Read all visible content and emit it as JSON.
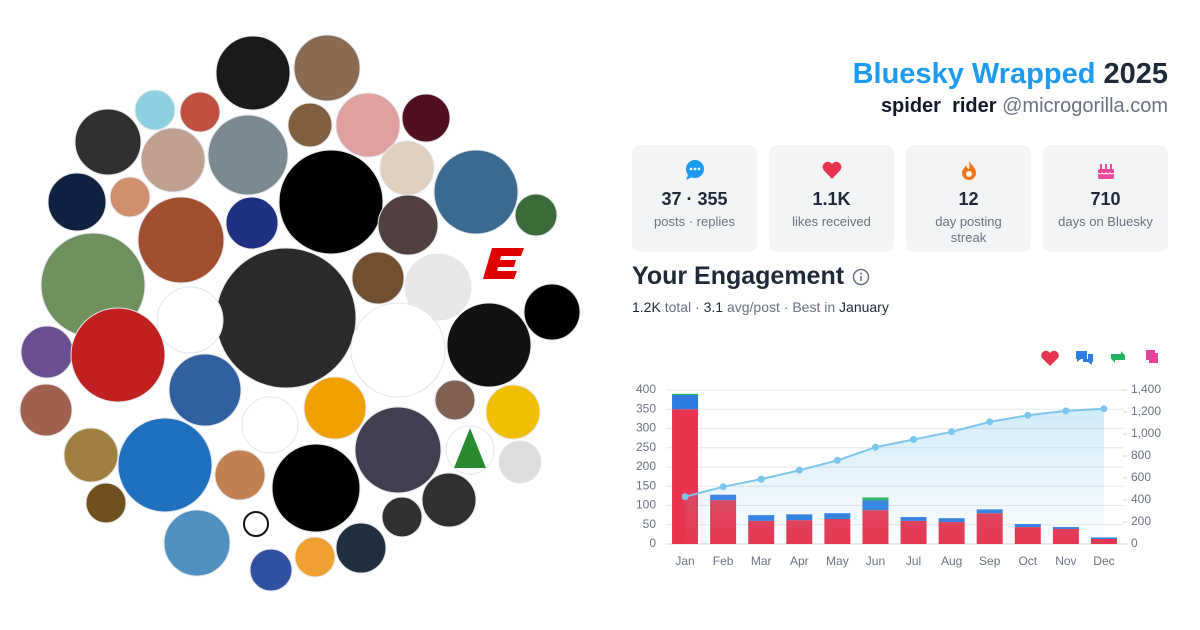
{
  "header": {
    "title": "Bluesky Wrapped",
    "year": "2025",
    "display_name": "spider  rider",
    "handle": "@microgorilla.com"
  },
  "stats": [
    {
      "value": "37 · 355",
      "label": "posts · replies"
    },
    {
      "value": "1.1K",
      "label": "likes received"
    },
    {
      "value": "12",
      "label": "day posting streak"
    },
    {
      "value": "710",
      "label": "days on Bluesky"
    }
  ],
  "engagement": {
    "title": "Your Engagement",
    "summary": [
      "1.2K",
      "total ·",
      "3.1",
      "avg/post · Best in",
      "January"
    ]
  },
  "chart_data": {
    "type": "bar",
    "stacked": true,
    "categories": [
      "Jan",
      "Feb",
      "Mar",
      "Apr",
      "May",
      "Jun",
      "Jul",
      "Aug",
      "Sep",
      "Oct",
      "Nov",
      "Dec"
    ],
    "series": [
      {
        "color": "#e8344e",
        "values": [
          350,
          114,
          60,
          62,
          65,
          88,
          60,
          57,
          80,
          44,
          39,
          13
        ]
      },
      {
        "color": "#2f7de1",
        "values": [
          37,
          14,
          15,
          15,
          15,
          25,
          10,
          10,
          10,
          8,
          5,
          4
        ]
      },
      {
        "color": "#22b35e",
        "values": [
          3,
          0,
          0,
          0,
          0,
          8,
          0,
          0,
          0,
          0,
          0,
          0
        ]
      },
      {
        "color": "#e3449b",
        "values": [
          0,
          0,
          0,
          0,
          0,
          0,
          0,
          0,
          0,
          0,
          0,
          0
        ]
      },
      {
        "type": "line",
        "axis": "y2",
        "color": "#7cc6ee",
        "values": [
          430,
          520,
          590,
          670,
          760,
          880,
          950,
          1020,
          1110,
          1170,
          1210,
          1230
        ]
      }
    ],
    "ylim": [
      0,
      400
    ],
    "yticks": [
      0,
      50,
      100,
      150,
      200,
      250,
      300,
      350,
      400
    ],
    "y2lim": [
      0,
      1400
    ],
    "y2ticks": [
      0,
      200,
      400,
      600,
      800,
      {
        "value": 1000,
        "label": "1,000"
      },
      {
        "value": 1200,
        "label": "1,200"
      },
      {
        "value": 1400,
        "label": "1,400"
      }
    ],
    "grid": true
  }
}
